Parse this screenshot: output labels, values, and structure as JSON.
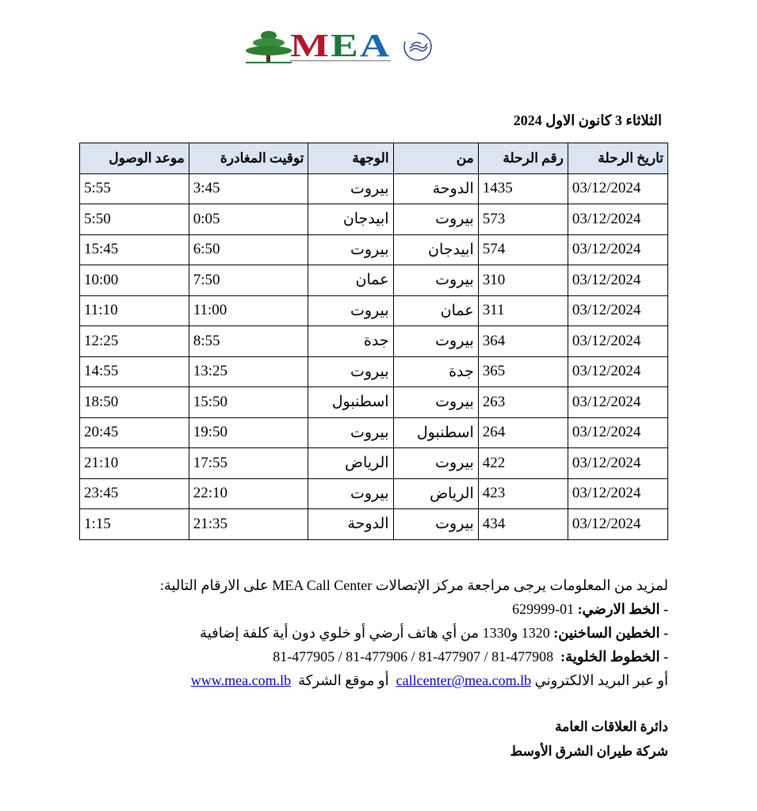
{
  "logo": {
    "text": "MEA",
    "colors": [
      "#b0182b",
      "#1a7a3c",
      "#1b67b0"
    ],
    "partner": "SKYTEAM"
  },
  "title": "الثلاثاء 3 كانون الاول 2024",
  "table": {
    "headers": [
      "تاريخ الرحلة",
      "رقم الرحلة",
      "من",
      "الوجهة",
      "توقيت المغادرة",
      "موعد الوصول"
    ],
    "rows": [
      [
        "03/12/2024",
        "1435",
        "الدوحة",
        "بيروت",
        "3:45",
        "5:55"
      ],
      [
        "03/12/2024",
        "573",
        "بيروت",
        "ابيدجان",
        "0:05",
        "5:50"
      ],
      [
        "03/12/2024",
        "574",
        "ابيدجان",
        "بيروت",
        "6:50",
        "15:45"
      ],
      [
        "03/12/2024",
        "310",
        "بيروت",
        "عمان",
        "7:50",
        "10:00"
      ],
      [
        "03/12/2024",
        "311",
        "عمان",
        "بيروت",
        "11:00",
        "11:10"
      ],
      [
        "03/12/2024",
        "364",
        "بيروت",
        "جدة",
        "8:55",
        "12:25"
      ],
      [
        "03/12/2024",
        "365",
        "جدة",
        "بيروت",
        "13:25",
        "14:55"
      ],
      [
        "03/12/2024",
        "263",
        "بيروت",
        "اسطنبول",
        "15:50",
        "18:50"
      ],
      [
        "03/12/2024",
        "264",
        "اسطنبول",
        "بيروت",
        "19:50",
        "20:45"
      ],
      [
        "03/12/2024",
        "422",
        "بيروت",
        "الرياض",
        "17:55",
        "21:10"
      ],
      [
        "03/12/2024",
        "423",
        "الرياض",
        "بيروت",
        "22:10",
        "23:45"
      ],
      [
        "03/12/2024",
        "434",
        "بيروت",
        "الدوحة",
        "21:35",
        "1:15"
      ]
    ]
  },
  "info": {
    "intro": "لمزيد من المعلومات يرجى مراجعة مركز الإتصالات MEA Call Center على الارقام التالية:",
    "landline_label": "- الخط الارضي:",
    "landline_value": "01-629999",
    "hotlines_label": "- الخطين الساخنين:",
    "hotlines_value": "1320 و1330 من أي هاتف أرضي أو خلوي دون أية كلفة إضافية",
    "mobile_label": "- الخطوط الخلوية:",
    "mobile_value": "81-477905 / 81-477906 / 81-477907 / 81-477908",
    "email_prefix": "أو عبر البريد الالكتروني",
    "email": "callcenter@mea.com.lb",
    "site_prefix": "أو موقع الشركة",
    "website": "www.mea.com.lb"
  },
  "signature": {
    "dept": "دائرة العلاقات العامة",
    "company": "شركة طيران الشرق الأوسط"
  }
}
